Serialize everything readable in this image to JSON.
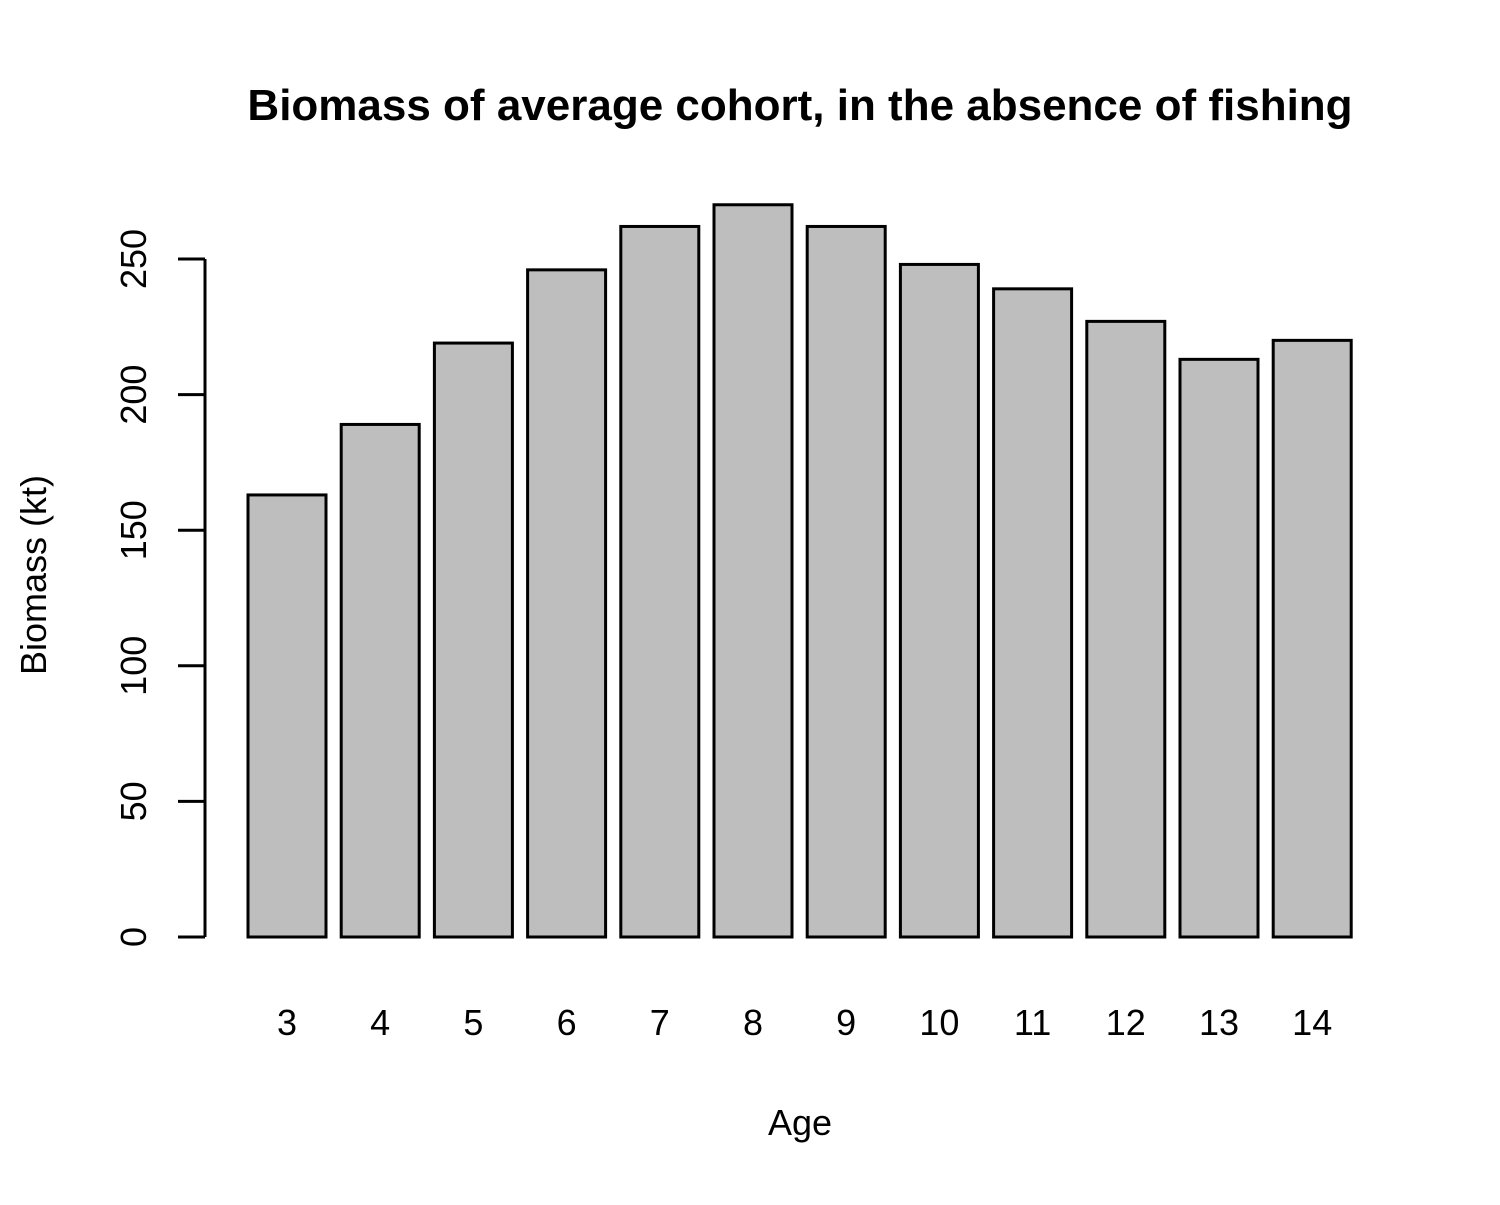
{
  "chart_data": {
    "type": "bar",
    "title": "Biomass of average cohort, in the absence of fishing",
    "xlabel": "Age",
    "ylabel": "Biomass (kt)",
    "categories": [
      "3",
      "4",
      "5",
      "6",
      "7",
      "8",
      "9",
      "10",
      "11",
      "12",
      "13",
      "14"
    ],
    "values": [
      163,
      189,
      219,
      246,
      262,
      270,
      262,
      248,
      239,
      227,
      213,
      220
    ],
    "ylim": [
      0,
      250
    ],
    "yticks": [
      "0",
      "50",
      "100",
      "150",
      "200",
      "250"
    ],
    "grid": false,
    "legend": "none",
    "colors": {
      "bar_fill": "#bebebe",
      "bar_stroke": "#000000",
      "background": "#ffffff"
    }
  }
}
